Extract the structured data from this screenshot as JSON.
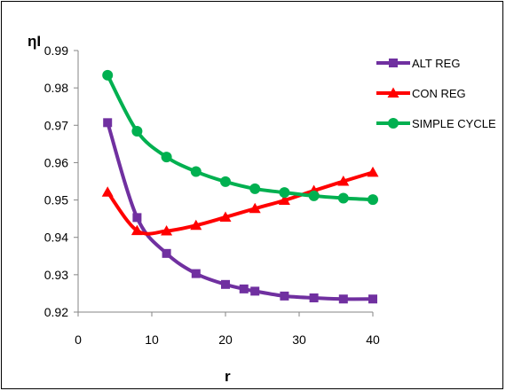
{
  "chart_data": {
    "type": "line",
    "ylabel": "ηI",
    "xlabel": "r",
    "xlim": [
      0,
      40
    ],
    "ylim": [
      0.92,
      0.99
    ],
    "xticks": [
      "0",
      "10",
      "20",
      "30",
      "40"
    ],
    "yticks": [
      "0.92",
      "0.93",
      "0.94",
      "0.95",
      "0.96",
      "0.97",
      "0.98",
      "0.99"
    ],
    "grid": false,
    "legend_position": "right",
    "series": [
      {
        "name": "ALT REG",
        "color": "#7030A0",
        "marker": "square",
        "x": [
          4,
          8,
          12,
          16,
          20,
          22.5,
          24,
          28,
          32,
          36,
          40
        ],
        "y": [
          0.9707,
          0.9453,
          0.9357,
          0.9303,
          0.9274,
          0.9262,
          0.9256,
          0.9243,
          0.9238,
          0.9235,
          0.9235
        ]
      },
      {
        "name": "CON REG",
        "color": "#FF0000",
        "marker": "triangle",
        "x": [
          4,
          8,
          12,
          16,
          20,
          24,
          28,
          32,
          36,
          40
        ],
        "y": [
          0.9521,
          0.9418,
          0.9417,
          0.9432,
          0.9454,
          0.9477,
          0.9499,
          0.9525,
          0.955,
          0.9574
        ]
      },
      {
        "name": "SIMPLE CYCLE",
        "color": "#00B050",
        "marker": "circle",
        "x": [
          4,
          8,
          12,
          16,
          20,
          24,
          28,
          32,
          36,
          40
        ],
        "y": [
          0.9834,
          0.9684,
          0.9615,
          0.9576,
          0.9549,
          0.953,
          0.952,
          0.9511,
          0.9505,
          0.9501
        ]
      }
    ]
  }
}
